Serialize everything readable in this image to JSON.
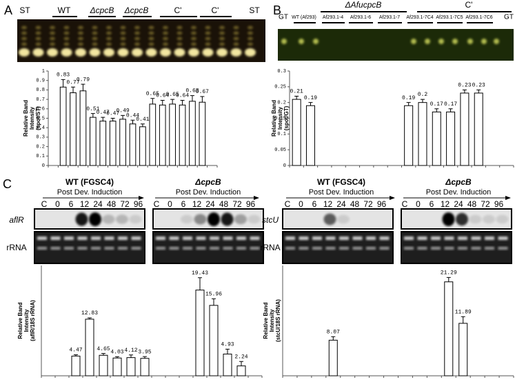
{
  "figure": {
    "panel_labels": [
      "A",
      "B",
      "C"
    ],
    "panel_a": {
      "lanes": [
        "ST",
        "WT",
        "ΔcpcB",
        "ΔcpcB",
        "C'",
        "C'",
        "ST"
      ]
    },
    "panel_b": {
      "groups": [
        "ΔAfucpcB",
        "C'"
      ],
      "lanes": [
        "GT",
        "WT (Af293)",
        "Af293.1-4",
        "Af293.1-6",
        "Af293.1-7",
        "Af293.1-7C4",
        "Af293.1-7C5",
        "Af293.1-7C6",
        "GT"
      ]
    },
    "panel_c": {
      "strains": [
        "WT (FGSC4)",
        "ΔcpcB"
      ],
      "induction": "Post Dev. Induction",
      "lanes": [
        "C",
        "0",
        "6",
        "12",
        "24",
        "48",
        "72",
        "96"
      ],
      "genes": [
        "aflR",
        "stcU"
      ],
      "rrna": "rRNA"
    }
  },
  "chart_data": [
    {
      "type": "bar",
      "ylabel": [
        "Relative Band",
        "Intensity",
        "(spot/ST)"
      ],
      "categories": [
        null,
        null,
        null,
        null,
        null,
        null,
        null,
        null,
        null,
        null,
        null,
        null,
        null,
        null,
        null,
        null,
        null
      ],
      "values": [
        null,
        0.83,
        0.77,
        0.79,
        0.51,
        0.47,
        0.47,
        0.49,
        0.44,
        0.41,
        0.65,
        0.64,
        0.65,
        0.64,
        0.68,
        0.67,
        null
      ],
      "errors": [
        null,
        0.08,
        0.06,
        0.07,
        0.04,
        0.04,
        0.03,
        0.04,
        0.04,
        0.03,
        0.06,
        0.05,
        0.05,
        0.05,
        0.06,
        0.06,
        null
      ],
      "ylim": [
        0,
        1
      ],
      "yticks": [
        0,
        0.1,
        0.2,
        0.3,
        0.4,
        0.5,
        0.6,
        0.7,
        0.8,
        0.9,
        1
      ],
      "color": "#ffffff"
    },
    {
      "type": "bar",
      "ylabel": [
        "Relative Band",
        "Intensity",
        "(spot/GT)"
      ],
      "categories": [
        null,
        null,
        null,
        null,
        null,
        null,
        null,
        null,
        null,
        null,
        null,
        null,
        null,
        null,
        null,
        null
      ],
      "values": [
        0.21,
        0.19,
        null,
        null,
        null,
        null,
        null,
        null,
        0.19,
        0.2,
        0.17,
        0.17,
        0.23,
        0.23,
        null,
        null
      ],
      "errors": [
        0.01,
        0.01,
        null,
        null,
        null,
        null,
        null,
        null,
        0.01,
        0.01,
        0.01,
        0.01,
        0.01,
        0.01,
        null,
        null
      ],
      "ylim": [
        0,
        0.3
      ],
      "yticks": [
        0,
        0.05,
        0.1,
        0.15,
        0.2,
        0.25,
        0.3
      ],
      "color": "#ffffff"
    },
    {
      "type": "bar",
      "ylabel": [
        "Relative Band",
        "Intensity",
        "(aflR/18S rRNA)"
      ],
      "categories": [
        null,
        null,
        null,
        null,
        null,
        null,
        null,
        null,
        null,
        null,
        null,
        null,
        null,
        null,
        null,
        null
      ],
      "values": [
        null,
        null,
        4.47,
        12.83,
        4.65,
        4.03,
        4.12,
        3.95,
        null,
        null,
        null,
        19.43,
        15.96,
        4.93,
        2.24,
        null
      ],
      "errors": [
        null,
        null,
        0.3,
        0.3,
        0.4,
        0.3,
        0.6,
        0.4,
        null,
        null,
        null,
        2.8,
        1.5,
        1.1,
        1.0,
        null
      ],
      "ylim": [
        0,
        25
      ],
      "color": "#ffffff"
    },
    {
      "type": "bar",
      "ylabel": [
        "Relative Band",
        "Intensity",
        "(stcU/18S rRNA)"
      ],
      "categories": [
        null,
        null,
        null,
        null,
        null,
        null,
        null,
        null,
        null,
        null,
        null,
        null,
        null,
        null,
        null,
        null
      ],
      "values": [
        null,
        null,
        null,
        8.07,
        null,
        null,
        null,
        null,
        null,
        null,
        null,
        21.29,
        11.89,
        null,
        null,
        null
      ],
      "errors": [
        null,
        null,
        null,
        0.8,
        null,
        null,
        null,
        null,
        null,
        null,
        null,
        1.0,
        1.5,
        null,
        null,
        null
      ],
      "ylim": [
        0,
        25
      ],
      "color": "#ffffff"
    }
  ]
}
